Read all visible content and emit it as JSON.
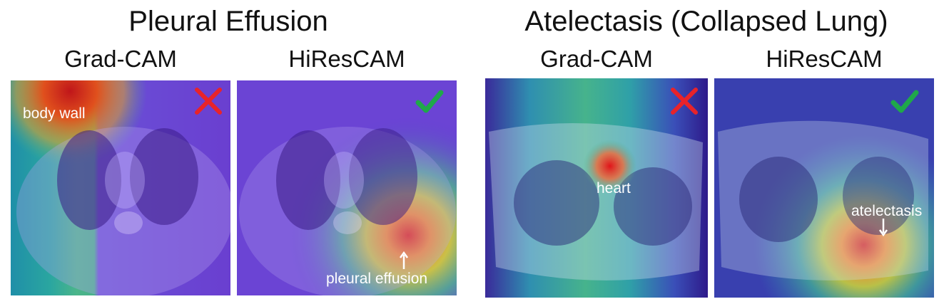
{
  "groups": [
    {
      "title": "Pleural Effusion",
      "panels": [
        {
          "method": "Grad-CAM",
          "verdict": "cross-icon",
          "annotation": "body wall"
        },
        {
          "method": "HiResCAM",
          "verdict": "check-icon",
          "annotation": "pleural effusion"
        }
      ]
    },
    {
      "title": "Atelectasis (Collapsed Lung)",
      "panels": [
        {
          "method": "Grad-CAM",
          "verdict": "cross-icon",
          "annotation": "heart"
        },
        {
          "method": "HiResCAM",
          "verdict": "check-icon",
          "annotation": "atelectasis"
        }
      ]
    }
  ],
  "colors": {
    "cross": "#e8232a",
    "check": "#1fa84a",
    "overlay_base": "#3b1f9a"
  }
}
